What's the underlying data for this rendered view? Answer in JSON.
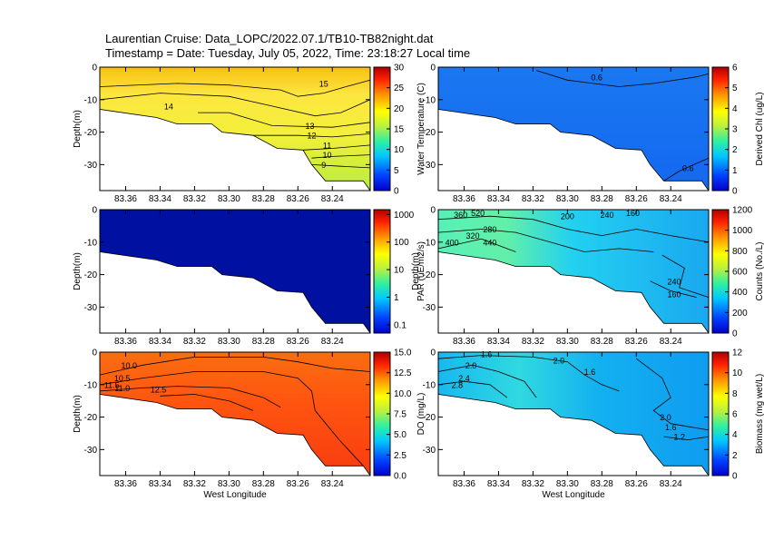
{
  "header": {
    "title_line1": "Laurentian Cruise: Data_LOPC/2022.07.1/TB10-TB82night.dat",
    "title_line2": "Timestamp = Date: Tuesday, July 05, 2022, Time: 23:18:27 Local time"
  },
  "chart_data": [
    {
      "type": "heatmap",
      "panel": "water-temperature",
      "xlabel": "",
      "ylabel": "Depth(m)",
      "xlim": [
        83.375,
        83.218
      ],
      "ylim": [
        0,
        -38
      ],
      "x_ticks": [
        "83.36",
        "83.34",
        "83.32",
        "83.30",
        "83.28",
        "83.26",
        "83.24"
      ],
      "y_ticks": [
        "0",
        "-10",
        "-20",
        "-30"
      ],
      "colorbar": {
        "label": "Water Temperature (C)",
        "scale": "linear",
        "range": [
          0,
          30
        ],
        "ticks": [
          "0",
          "5",
          "10",
          "15",
          "20",
          "25",
          "30"
        ]
      },
      "contour_labels": [
        "15",
        "14",
        "13",
        "12",
        "11",
        "10",
        "9"
      ],
      "bottom_profile": [
        [
          83.375,
          -13
        ],
        [
          83.342,
          -15.5
        ],
        [
          83.33,
          -17.5
        ],
        [
          83.31,
          -17.5
        ],
        [
          83.304,
          -20
        ],
        [
          83.286,
          -21
        ],
        [
          83.272,
          -25
        ],
        [
          83.257,
          -25.5
        ],
        [
          83.252,
          -30
        ],
        [
          83.244,
          -35
        ],
        [
          83.222,
          -35
        ],
        [
          83.218,
          -39
        ]
      ],
      "representative_value": 20
    },
    {
      "type": "heatmap",
      "panel": "derived-chl",
      "xlabel": "",
      "ylabel": "",
      "xlim": [
        83.375,
        83.218
      ],
      "ylim": [
        0,
        -38
      ],
      "x_ticks": [
        "83.36",
        "83.34",
        "83.32",
        "83.30",
        "83.28",
        "83.26",
        "83.24"
      ],
      "y_ticks": [
        "0",
        "-10",
        "-20",
        "-30"
      ],
      "colorbar": {
        "label": "Derived Chl (ug/L)",
        "scale": "linear",
        "range": [
          0,
          6
        ],
        "ticks": [
          "0",
          "1",
          "2",
          "3",
          "4",
          "5",
          "6"
        ]
      },
      "contour_labels": [
        "0.6",
        "0.6"
      ],
      "bottom_profile": [
        [
          83.375,
          -13
        ],
        [
          83.342,
          -15.5
        ],
        [
          83.33,
          -17.5
        ],
        [
          83.31,
          -17.5
        ],
        [
          83.304,
          -20
        ],
        [
          83.286,
          -21
        ],
        [
          83.272,
          -25
        ],
        [
          83.257,
          -25.5
        ],
        [
          83.252,
          -30
        ],
        [
          83.244,
          -35
        ],
        [
          83.222,
          -35
        ],
        [
          83.218,
          -39
        ]
      ],
      "representative_value": 0.6
    },
    {
      "type": "heatmap",
      "panel": "par",
      "xlabel": "",
      "ylabel": "Depth(m)",
      "xlim": [
        83.375,
        83.218
      ],
      "ylim": [
        0,
        -38
      ],
      "x_ticks": [
        "83.36",
        "83.34",
        "83.32",
        "83.30",
        "83.28",
        "83.26",
        "83.24"
      ],
      "y_ticks": [
        "0",
        "-10",
        "-20",
        "-30"
      ],
      "colorbar": {
        "label": "PAR (uE/m2/s)",
        "scale": "log",
        "range": [
          0.05,
          1500
        ],
        "ticks": [
          "0.1",
          "1",
          "10",
          "100",
          "1000"
        ]
      },
      "contour_labels": [],
      "bottom_profile": [
        [
          83.375,
          -13
        ],
        [
          83.342,
          -15.5
        ],
        [
          83.33,
          -17.5
        ],
        [
          83.31,
          -17.5
        ],
        [
          83.304,
          -20
        ],
        [
          83.286,
          -21
        ],
        [
          83.272,
          -25
        ],
        [
          83.257,
          -25.5
        ],
        [
          83.252,
          -30
        ],
        [
          83.244,
          -35
        ],
        [
          83.222,
          -35
        ],
        [
          83.218,
          -39
        ]
      ],
      "representative_value": 0.05
    },
    {
      "type": "heatmap",
      "panel": "counts",
      "xlabel": "",
      "ylabel": "Depth(m)",
      "xlim": [
        83.375,
        83.218
      ],
      "ylim": [
        0,
        -38
      ],
      "x_ticks": [
        "83.36",
        "83.34",
        "83.32",
        "83.30",
        "83.28",
        "83.26",
        "83.24"
      ],
      "y_ticks": [
        "0",
        "-10",
        "-20",
        "-30"
      ],
      "colorbar": {
        "label": "Counts (No./L)",
        "scale": "linear",
        "range": [
          0,
          1200
        ],
        "ticks": [
          "0",
          "200",
          "400",
          "600",
          "800",
          "1000",
          "1200"
        ]
      },
      "contour_labels": [
        "360",
        "520",
        "200",
        "240",
        "160",
        "440",
        "400",
        "320",
        "280",
        "240",
        "160"
      ],
      "bottom_profile": [
        [
          83.375,
          -13
        ],
        [
          83.342,
          -15.5
        ],
        [
          83.33,
          -17.5
        ],
        [
          83.31,
          -17.5
        ],
        [
          83.304,
          -20
        ],
        [
          83.286,
          -21
        ],
        [
          83.272,
          -25
        ],
        [
          83.257,
          -25.5
        ],
        [
          83.252,
          -30
        ],
        [
          83.244,
          -35
        ],
        [
          83.222,
          -35
        ],
        [
          83.218,
          -39
        ]
      ],
      "representative_value": 300
    },
    {
      "type": "heatmap",
      "panel": "do",
      "xlabel": "West Longitude",
      "ylabel": "Depth(m)",
      "xlim": [
        83.375,
        83.218
      ],
      "ylim": [
        0,
        -38
      ],
      "x_ticks": [
        "83.36",
        "83.34",
        "83.32",
        "83.30",
        "83.28",
        "83.26",
        "83.24"
      ],
      "y_ticks": [
        "0",
        "-10",
        "-20",
        "-30"
      ],
      "colorbar": {
        "label": "DO (mg/L)",
        "scale": "linear",
        "range": [
          0,
          15
        ],
        "ticks": [
          "0.0",
          "2.5",
          "5.0",
          "7.5",
          "10.0",
          "12.5",
          "15.0"
        ]
      },
      "contour_labels": [
        "10.0",
        "10.5",
        "11.0",
        "11.5",
        "12.5"
      ],
      "bottom_profile": [
        [
          83.375,
          -13
        ],
        [
          83.342,
          -15.5
        ],
        [
          83.33,
          -17.5
        ],
        [
          83.31,
          -17.5
        ],
        [
          83.304,
          -20
        ],
        [
          83.286,
          -21
        ],
        [
          83.272,
          -25
        ],
        [
          83.257,
          -25.5
        ],
        [
          83.252,
          -30
        ],
        [
          83.244,
          -35
        ],
        [
          83.222,
          -35
        ],
        [
          83.218,
          -39
        ]
      ],
      "representative_value": 11.5
    },
    {
      "type": "heatmap",
      "panel": "biomass",
      "xlabel": "West Longitude",
      "ylabel": "",
      "xlim": [
        83.375,
        83.218
      ],
      "ylim": [
        0,
        -38
      ],
      "x_ticks": [
        "83.36",
        "83.34",
        "83.32",
        "83.30",
        "83.28",
        "83.26",
        "83.24"
      ],
      "y_ticks": [
        "0",
        "-10",
        "-20",
        "-30"
      ],
      "colorbar": {
        "label": "Biomass (mg wet/L)",
        "scale": "linear",
        "range": [
          0,
          12
        ],
        "ticks": [
          "0",
          "2",
          "4",
          "6",
          "8",
          "10",
          "12"
        ]
      },
      "contour_labels": [
        "1.6",
        "2.0",
        "2.4",
        "2.8",
        "2.0",
        "1.6",
        "2.0",
        "1.6",
        "1.2"
      ],
      "bottom_profile": [
        [
          83.375,
          -13
        ],
        [
          83.342,
          -15.5
        ],
        [
          83.33,
          -17.5
        ],
        [
          83.31,
          -17.5
        ],
        [
          83.304,
          -20
        ],
        [
          83.286,
          -21
        ],
        [
          83.272,
          -25
        ],
        [
          83.257,
          -25.5
        ],
        [
          83.252,
          -30
        ],
        [
          83.244,
          -35
        ],
        [
          83.222,
          -35
        ],
        [
          83.218,
          -39
        ]
      ],
      "representative_value": 2.0
    }
  ]
}
